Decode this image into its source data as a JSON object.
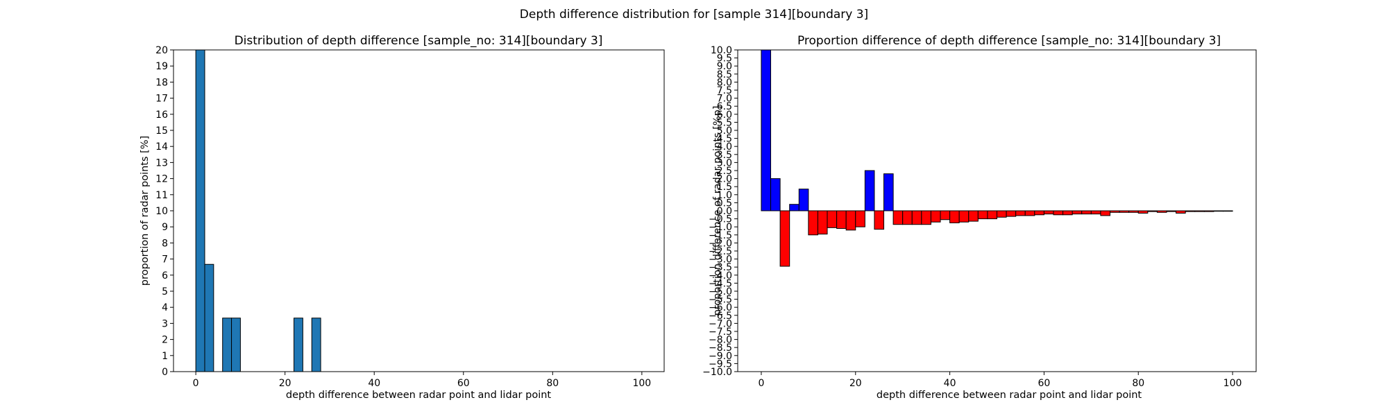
{
  "figure": {
    "suptitle": "Depth difference distribution for [sample 314][boundary 3]"
  },
  "colors": {
    "left_bar": "#1f77b4",
    "positive": "#0000ff",
    "negative": "#ff0000",
    "edge": "#000000"
  },
  "chart_data": [
    {
      "type": "bar",
      "title": "Distribution of depth difference [sample_no: 314][boundary 3]",
      "xlabel": "depth difference between radar point and lidar point",
      "ylabel": "proportion of radar points [%]",
      "xlim": [
        -5,
        105
      ],
      "ylim": [
        0,
        20
      ],
      "bin_width": 2,
      "xticks": [
        0,
        20,
        40,
        60,
        80,
        100
      ],
      "yticks": [
        0,
        1,
        2,
        3,
        4,
        5,
        6,
        7,
        8,
        9,
        10,
        11,
        12,
        13,
        14,
        15,
        16,
        17,
        18,
        19,
        20
      ],
      "x": [
        0,
        2,
        6,
        8,
        22,
        26
      ],
      "values": [
        20.0,
        6.67,
        3.33,
        3.33,
        3.33,
        3.33
      ]
    },
    {
      "type": "bar",
      "title": "Proportion difference of depth difference [sample_no: 314][boundary 3]",
      "xlabel": "depth difference between radar point and lidar point",
      "ylabel": "proportion difference of radar points [%p]",
      "xlim": [
        -5,
        105
      ],
      "ylim": [
        -10,
        10
      ],
      "bin_width": 2,
      "xticks": [
        0,
        20,
        40,
        60,
        80,
        100
      ],
      "yticks": [
        -10.0,
        -9.5,
        -9.0,
        -8.5,
        -8.0,
        -7.5,
        -7.0,
        -6.5,
        -6.0,
        -5.5,
        -5.0,
        -4.5,
        -4.0,
        -3.5,
        -3.0,
        -2.5,
        -2.0,
        -1.5,
        -1.0,
        -0.5,
        0.0,
        0.5,
        1.0,
        1.5,
        2.0,
        2.5,
        3.0,
        3.5,
        4.0,
        4.5,
        5.0,
        5.5,
        6.0,
        6.5,
        7.0,
        7.5,
        8.0,
        8.5,
        9.0,
        9.5,
        10.0
      ],
      "x": [
        0,
        2,
        4,
        6,
        8,
        10,
        12,
        14,
        16,
        18,
        20,
        22,
        24,
        26,
        28,
        30,
        32,
        34,
        36,
        38,
        40,
        42,
        44,
        46,
        48,
        50,
        52,
        54,
        56,
        58,
        60,
        62,
        64,
        66,
        68,
        70,
        72,
        74,
        76,
        78,
        80,
        82,
        84,
        86,
        88,
        90,
        92,
        94,
        96,
        98
      ],
      "values": [
        10.0,
        2.0,
        -3.45,
        0.4,
        1.35,
        -1.5,
        -1.45,
        -1.05,
        -1.1,
        -1.2,
        -1.0,
        2.5,
        -1.15,
        2.3,
        -0.85,
        -0.85,
        -0.85,
        -0.85,
        -0.7,
        -0.55,
        -0.75,
        -0.7,
        -0.65,
        -0.5,
        -0.5,
        -0.4,
        -0.35,
        -0.3,
        -0.3,
        -0.25,
        -0.2,
        -0.25,
        -0.25,
        -0.2,
        -0.2,
        -0.2,
        -0.3,
        -0.1,
        -0.1,
        -0.1,
        -0.15,
        -0.05,
        -0.1,
        -0.05,
        -0.15,
        -0.05,
        -0.05,
        -0.05,
        -0.03,
        -0.03
      ]
    }
  ]
}
